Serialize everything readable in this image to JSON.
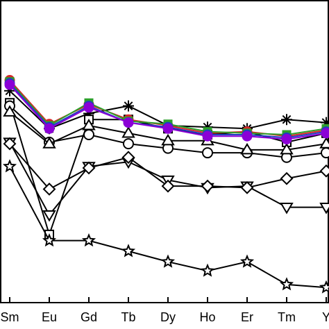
{
  "chart_data": {
    "type": "line",
    "categories": [
      "Sm",
      "Eu",
      "Gd",
      "Tb",
      "Dy",
      "Ho",
      "Er",
      "Tm",
      "Y"
    ],
    "ylim": [
      0,
      10
    ],
    "grid": false,
    "series": [
      {
        "marker": "circle-filled",
        "color": "#d62728",
        "values": [
          7.35,
          5.9,
          6.55,
          6.05,
          5.85,
          5.6,
          5.65,
          5.5,
          5.7
        ]
      },
      {
        "marker": "square-filled",
        "color": "#2ca02c",
        "values": [
          7.3,
          5.85,
          6.6,
          6.0,
          5.9,
          5.65,
          5.6,
          5.55,
          5.75
        ]
      },
      {
        "marker": "circle-filled",
        "color": "#1f3fbf",
        "values": [
          7.25,
          5.8,
          6.5,
          5.95,
          5.8,
          5.55,
          5.55,
          5.45,
          5.65
        ]
      },
      {
        "marker": "circle-filled",
        "color": "#8b00d6",
        "values": [
          7.2,
          5.75,
          6.45,
          5.95,
          5.75,
          5.5,
          5.5,
          5.4,
          5.6
        ]
      },
      {
        "marker": "asterisk",
        "color": "#000000",
        "values": [
          7.0,
          5.75,
          6.25,
          6.5,
          5.85,
          5.8,
          5.75,
          6.05,
          5.95
        ]
      },
      {
        "marker": "square",
        "color": "#000000",
        "values": [
          6.6,
          2.25,
          6.05,
          6.05,
          5.75,
          5.55,
          5.65,
          5.3,
          5.6
        ]
      },
      {
        "marker": "circle",
        "color": "#000000",
        "values": [
          6.5,
          5.3,
          5.55,
          5.25,
          5.1,
          4.95,
          4.95,
          4.8,
          4.95
        ]
      },
      {
        "marker": "triangle-up",
        "color": "#000000",
        "values": [
          6.3,
          5.25,
          5.85,
          5.6,
          5.35,
          5.35,
          5.05,
          5.05,
          5.25
        ]
      },
      {
        "marker": "triangle-down",
        "color": "#000000",
        "values": [
          5.3,
          2.9,
          4.5,
          4.65,
          4.05,
          3.8,
          3.85,
          3.15,
          3.15
        ]
      },
      {
        "marker": "diamond",
        "color": "#000000",
        "values": [
          5.25,
          3.75,
          4.45,
          4.8,
          3.85,
          3.85,
          3.8,
          4.1,
          4.35
        ]
      },
      {
        "marker": "star",
        "color": "#000000",
        "values": [
          4.5,
          2.05,
          2.05,
          1.7,
          1.35,
          1.05,
          1.35,
          0.6,
          0.5
        ]
      }
    ]
  }
}
